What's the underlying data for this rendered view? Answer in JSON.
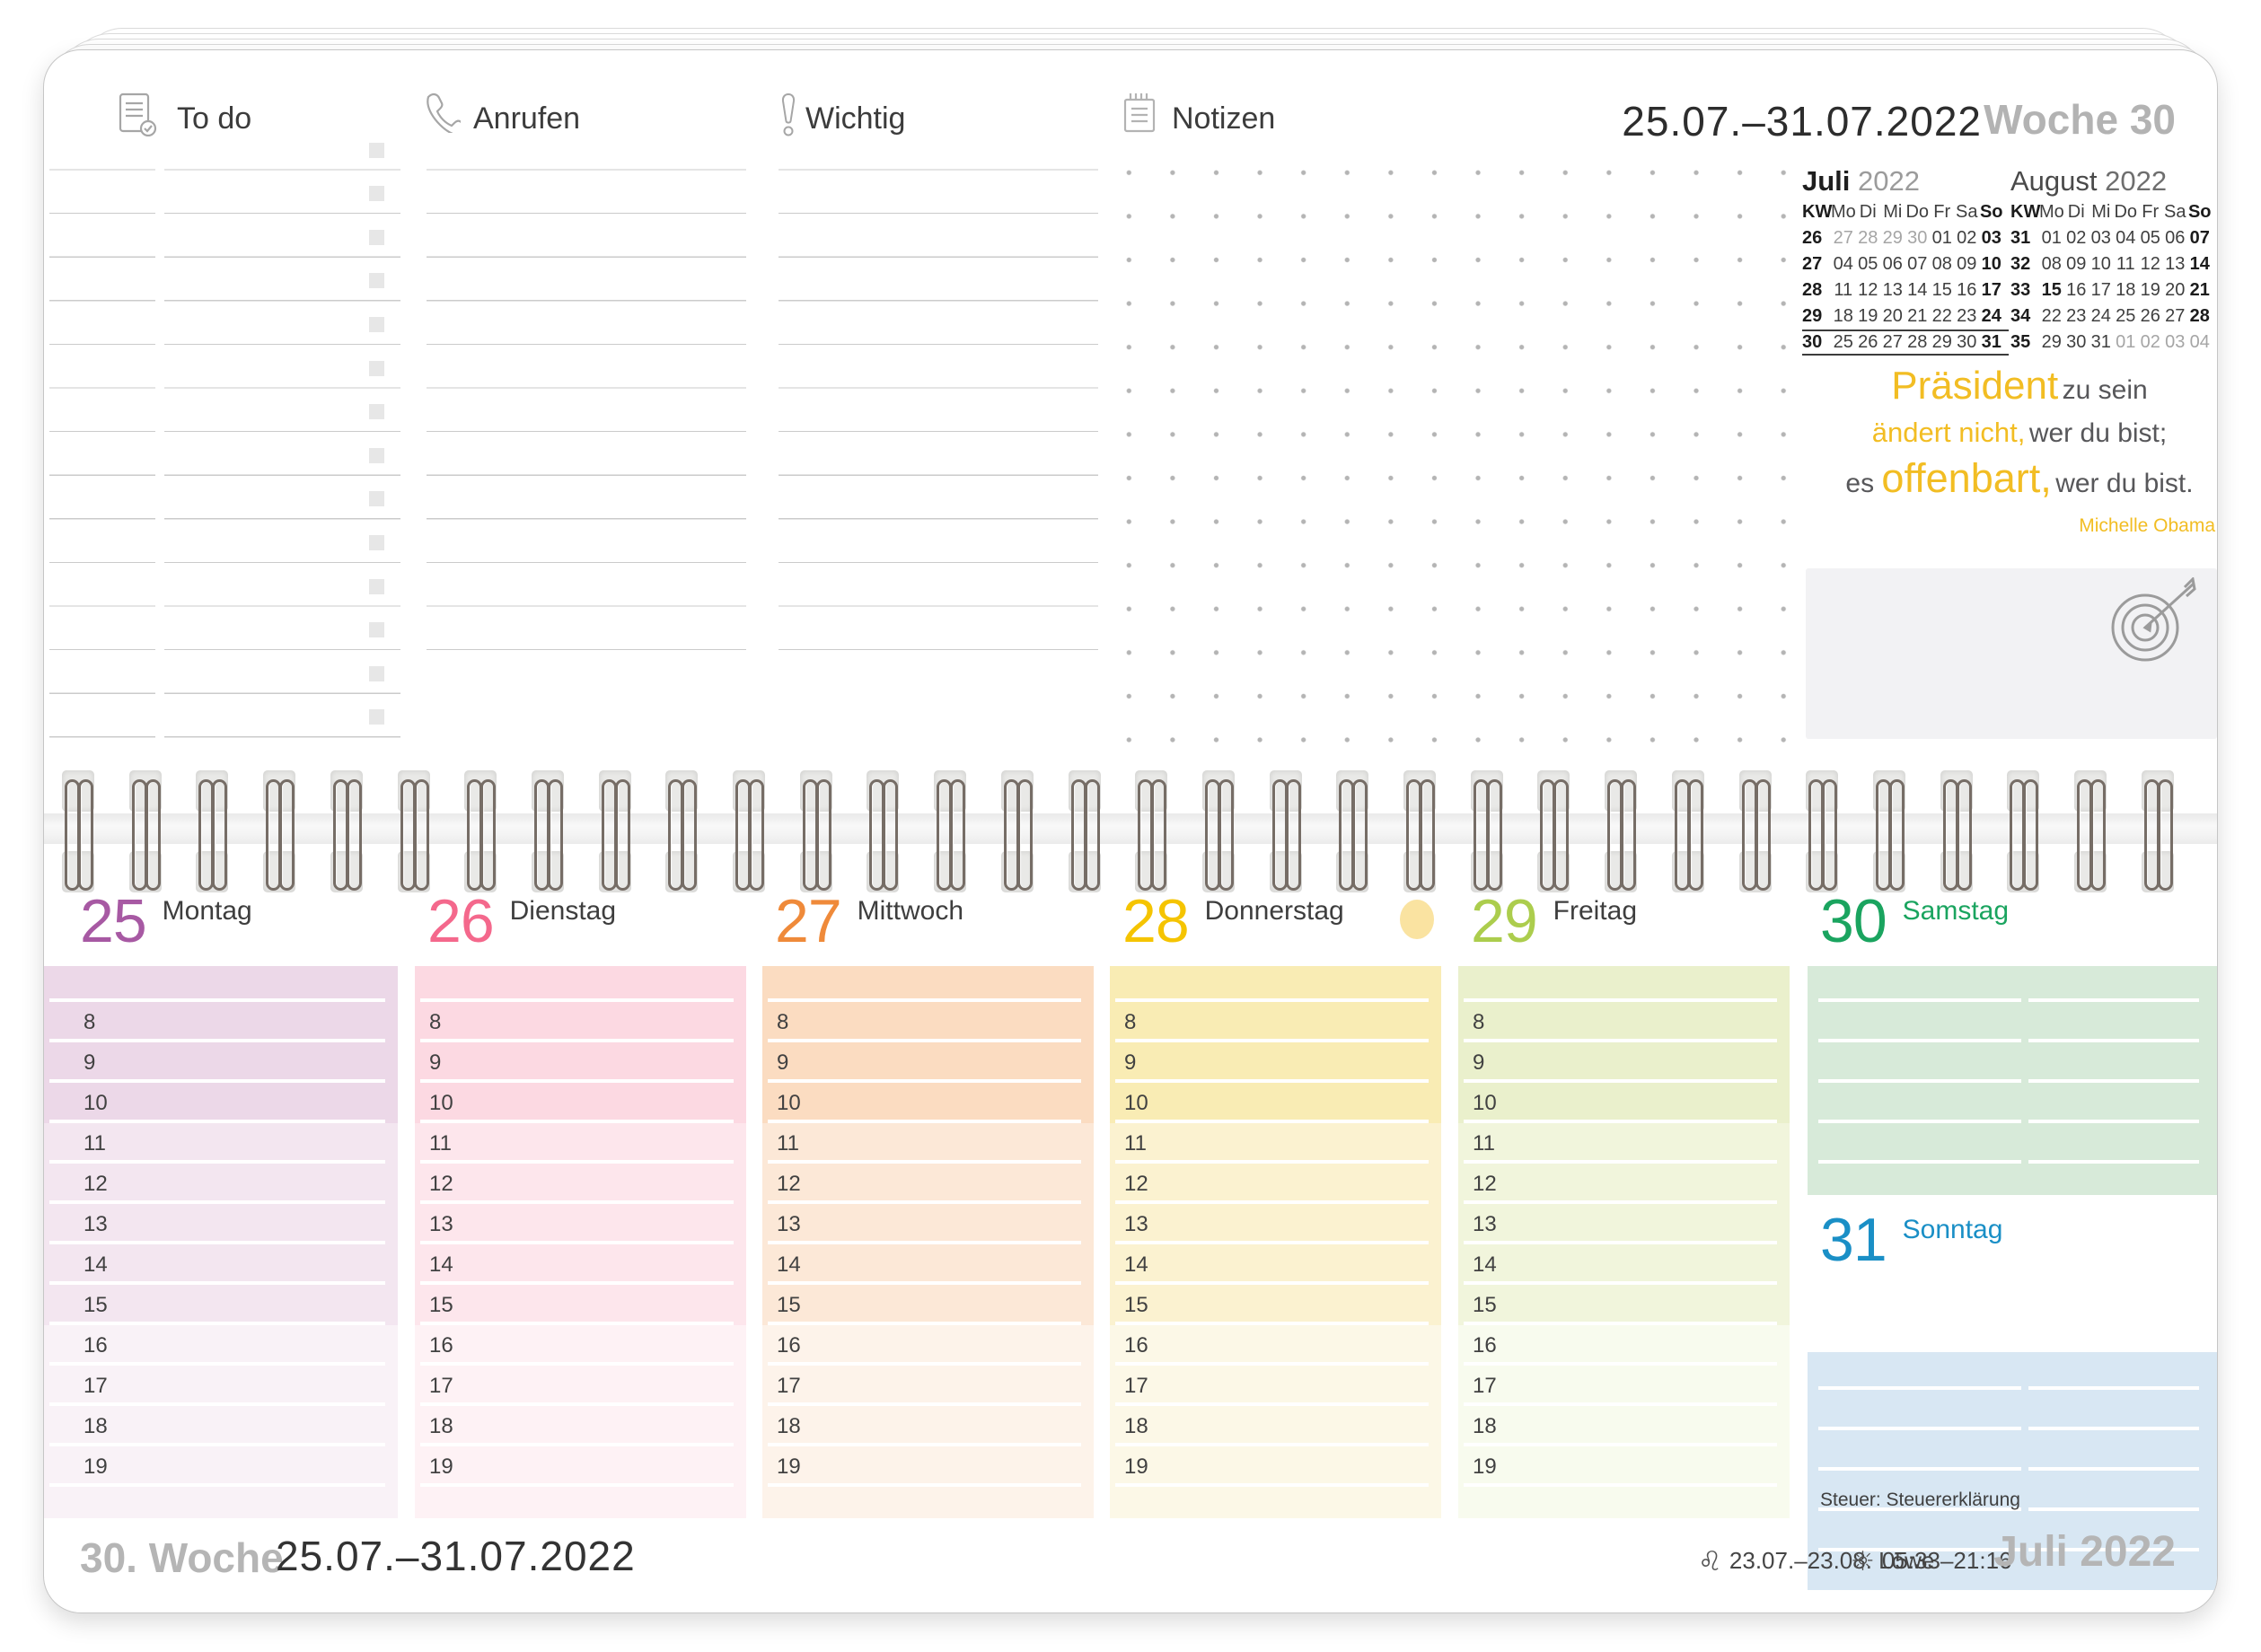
{
  "sheet": {
    "top_header": {
      "date_range": "25.07.–31.07.2022",
      "week_label": "Woche 30"
    },
    "top_sections": [
      {
        "id": "todo",
        "label": "To do",
        "icon": "checklist-document-icon"
      },
      {
        "id": "anrufen",
        "label": "Anrufen",
        "icon": "phone-icon"
      },
      {
        "id": "wichtig",
        "label": "Wichtig",
        "icon": "exclamation-icon"
      },
      {
        "id": "notizen",
        "label": "Notizen",
        "icon": "notepad-icon"
      }
    ],
    "mini_calendars": [
      {
        "month": "Juli",
        "year": "2022",
        "day_headers": [
          "KW",
          "Mo",
          "Di",
          "Mi",
          "Do",
          "Fr",
          "Sa",
          "So"
        ],
        "weeks": [
          {
            "kw": "26",
            "days": [
              "27",
              "28",
              "29",
              "30",
              "01",
              "02",
              "03"
            ],
            "gray": [
              0,
              1,
              2,
              3
            ],
            "highlight": false
          },
          {
            "kw": "27",
            "days": [
              "04",
              "05",
              "06",
              "07",
              "08",
              "09",
              "10"
            ],
            "gray": [],
            "highlight": false
          },
          {
            "kw": "28",
            "days": [
              "11",
              "12",
              "13",
              "14",
              "15",
              "16",
              "17"
            ],
            "gray": [],
            "highlight": false
          },
          {
            "kw": "29",
            "days": [
              "18",
              "19",
              "20",
              "21",
              "22",
              "23",
              "24"
            ],
            "gray": [],
            "highlight": false
          },
          {
            "kw": "30",
            "days": [
              "25",
              "26",
              "27",
              "28",
              "29",
              "30",
              "31"
            ],
            "gray": [],
            "highlight": true
          }
        ]
      },
      {
        "month": "August",
        "year": "2022",
        "day_headers": [
          "KW",
          "Mo",
          "Di",
          "Mi",
          "Do",
          "Fr",
          "Sa",
          "So"
        ],
        "weeks": [
          {
            "kw": "31",
            "days": [
              "01",
              "02",
              "03",
              "04",
              "05",
              "06",
              "07"
            ],
            "gray": [],
            "highlight": false
          },
          {
            "kw": "32",
            "days": [
              "08",
              "09",
              "10",
              "11",
              "12",
              "13",
              "14"
            ],
            "gray": [],
            "highlight": false
          },
          {
            "kw": "33",
            "days": [
              "15",
              "16",
              "17",
              "18",
              "19",
              "20",
              "21"
            ],
            "gray": [],
            "bold": [
              0
            ],
            "highlight": false
          },
          {
            "kw": "34",
            "days": [
              "22",
              "23",
              "24",
              "25",
              "26",
              "27",
              "28"
            ],
            "gray": [],
            "highlight": false
          },
          {
            "kw": "35",
            "days": [
              "29",
              "30",
              "31",
              "01",
              "02",
              "03",
              "04"
            ],
            "gray": [
              3,
              4,
              5,
              6
            ],
            "highlight": false
          }
        ]
      }
    ],
    "quote": {
      "line1_accent": "Präsident",
      "line1_rest": " zu sein",
      "line2_accent": "ändert nicht,",
      "line2_rest": " wer du bist;",
      "line3_lead": "es ",
      "line3_accent": "offenbart,",
      "line3_rest": " wer du bist.",
      "author": "Michelle Obama",
      "accent_color": "#f2bd23",
      "text_color": "#57575a"
    },
    "week_grid": {
      "hours": [
        "8",
        "9",
        "10",
        "11",
        "12",
        "13",
        "14",
        "15",
        "16",
        "17",
        "18",
        "19"
      ],
      "days": [
        {
          "num": "25",
          "name": "Montag",
          "num_color": "#a759a3",
          "name_color": "#3e3e3e",
          "bands": [
            "#ecd8e8",
            "#f3e6f0",
            "#f9f2f7"
          ],
          "has_hours": true
        },
        {
          "num": "26",
          "name": "Dienstag",
          "num_color": "#f4688c",
          "name_color": "#3e3e3e",
          "bands": [
            "#fcd9e2",
            "#fde6ec",
            "#fef2f5"
          ],
          "has_hours": true
        },
        {
          "num": "27",
          "name": "Mittwoch",
          "num_color": "#ef8a3a",
          "name_color": "#3e3e3e",
          "bands": [
            "#fbdcc1",
            "#fce8d7",
            "#fdf3ea"
          ],
          "has_hours": true
        },
        {
          "num": "28",
          "name": "Donnerstag",
          "num_color": "#f5c401",
          "name_color": "#3e3e3e",
          "bands": [
            "#f9ecb4",
            "#fbf2d0",
            "#fcf8e7"
          ],
          "has_hours": true,
          "moon_dot": true,
          "moon_dot_color": "#fae3a1"
        },
        {
          "num": "29",
          "name": "Freitag",
          "num_color": "#accd4d",
          "name_color": "#3e3e3e",
          "bands": [
            "#eaf0cc",
            "#f1f5dc",
            "#f8fbee"
          ],
          "has_hours": true
        },
        {
          "num": "30",
          "name": "Samstag",
          "num_color": "#1aa45f",
          "name_color": "#1aa45f",
          "bands": [
            "#d7ead9"
          ],
          "has_hours": false
        },
        {
          "num": "31",
          "name": "Sonntag",
          "num_color": "#1a8fc6",
          "name_color": "#1a8fc6",
          "bands": [
            "#d8e7f3"
          ],
          "has_hours": false,
          "note": "Steuer: Steuererklärung"
        }
      ]
    },
    "footer": {
      "week_label": "30. Woche",
      "date_range": "25.07.–31.07.2022",
      "zodiac_symbol": "♌",
      "zodiac_range": "23.07.–23.08. Löwe",
      "sun_symbol": "☼",
      "sun_times": "05:33–21:16",
      "month_label": "Juli 2022"
    }
  }
}
